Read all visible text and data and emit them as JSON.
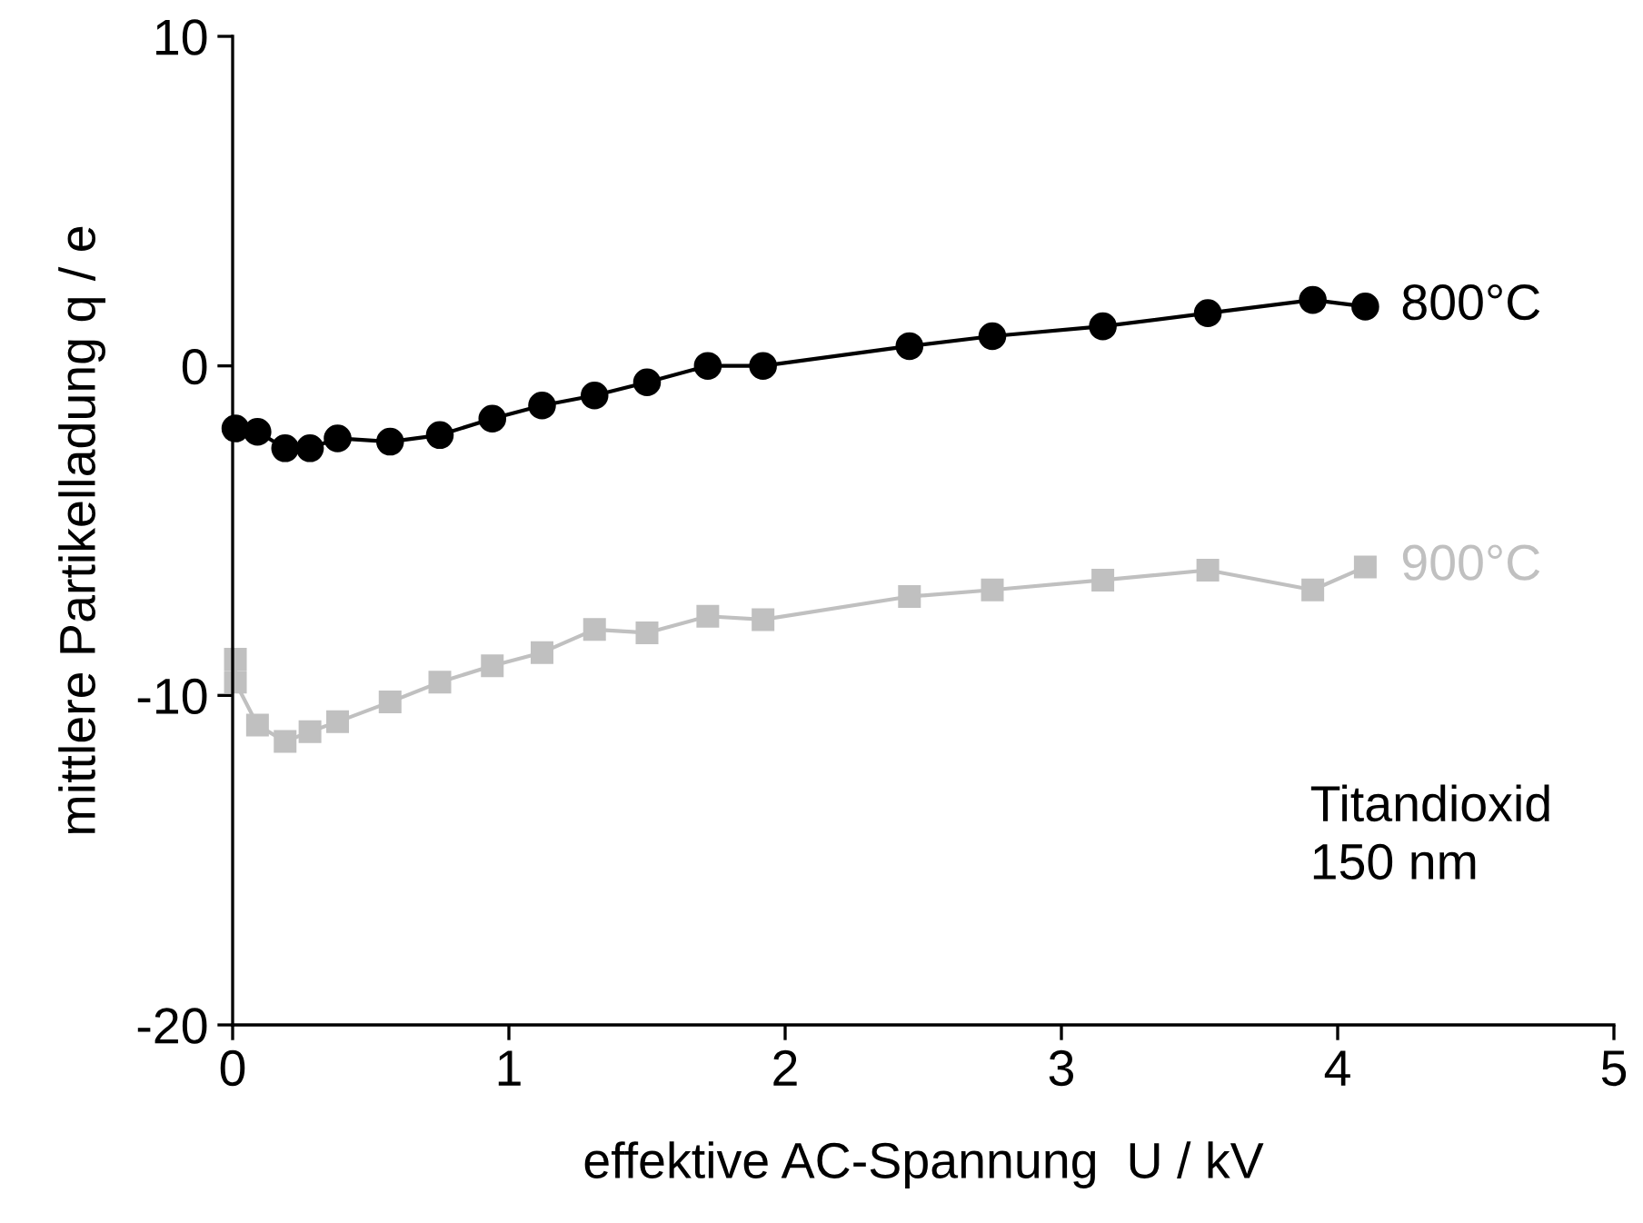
{
  "chart_data": {
    "type": "line",
    "xlabel": "effektive AC-Spannung  U / kV",
    "ylabel": "mittlere Partikelladung q / e",
    "xlim": [
      0,
      5
    ],
    "xticks": [
      0,
      1,
      2,
      3,
      4,
      5
    ],
    "ylim": [
      -20,
      10
    ],
    "yticks": [
      -20,
      -10,
      0,
      10
    ],
    "grid": false,
    "legend": false,
    "annotations": [
      "Titandioxid\n150 nm"
    ],
    "series": [
      {
        "name": "800°C",
        "color": "#000000",
        "marker": "circle",
        "x": [
          0.01,
          0.09,
          0.19,
          0.28,
          0.38,
          0.57,
          0.75,
          0.94,
          1.12,
          1.31,
          1.5,
          1.72,
          1.92,
          2.45,
          2.75,
          3.15,
          3.53,
          3.91,
          4.1
        ],
        "values": [
          -1.9,
          -2.0,
          -2.5,
          -2.5,
          -2.2,
          -2.3,
          -2.1,
          -1.6,
          -1.2,
          -0.9,
          -0.5,
          0.0,
          0.0,
          0.6,
          0.9,
          1.2,
          1.6,
          2.0,
          1.8
        ]
      },
      {
        "name": "900°C",
        "color": "#c0c0c0",
        "marker": "square",
        "x": [
          0.01,
          0.01,
          0.09,
          0.19,
          0.28,
          0.38,
          0.57,
          0.75,
          0.94,
          1.12,
          1.31,
          1.5,
          1.72,
          1.92,
          2.45,
          2.75,
          3.15,
          3.53,
          3.91,
          4.1
        ],
        "values": [
          -8.9,
          -9.6,
          -10.9,
          -11.4,
          -11.1,
          -10.8,
          -10.2,
          -9.6,
          -9.1,
          -8.7,
          -8.0,
          -8.1,
          -7.6,
          -7.7,
          -7.0,
          -6.8,
          -6.5,
          -6.2,
          -6.8,
          -6.1
        ]
      }
    ]
  }
}
